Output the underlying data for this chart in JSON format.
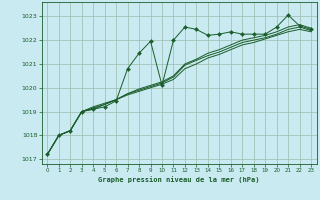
{
  "bg_color": "#c8eaf0",
  "grid_color": "#99bbaa",
  "line_color": "#1a5c2a",
  "xlabel": "Graphe pression niveau de la mer (hPa)",
  "xlim": [
    -0.5,
    23.5
  ],
  "ylim": [
    1016.8,
    1023.6
  ],
  "yticks": [
    1017,
    1018,
    1019,
    1020,
    1021,
    1022,
    1023
  ],
  "xticks": [
    0,
    1,
    2,
    3,
    4,
    5,
    6,
    7,
    8,
    9,
    10,
    11,
    12,
    13,
    14,
    15,
    16,
    17,
    18,
    19,
    20,
    21,
    22,
    23
  ],
  "series": {
    "line1": [
      1017.2,
      1018.0,
      1018.2,
      1019.0,
      1019.1,
      1019.2,
      1019.45,
      1020.8,
      1021.45,
      1021.95,
      1020.1,
      1022.0,
      1022.55,
      1022.45,
      1022.2,
      1022.25,
      1022.35,
      1022.25,
      1022.25,
      1022.25,
      1022.55,
      1023.05,
      1022.6,
      1022.45
    ],
    "line2": [
      1017.2,
      1018.0,
      1018.2,
      1019.0,
      1019.1,
      1019.3,
      1019.5,
      1019.75,
      1019.95,
      1020.1,
      1020.25,
      1020.5,
      1021.0,
      1021.2,
      1021.45,
      1021.6,
      1021.8,
      1022.0,
      1022.1,
      1022.2,
      1022.35,
      1022.55,
      1022.65,
      1022.5
    ],
    "line3": [
      1017.2,
      1018.0,
      1018.2,
      1019.0,
      1019.15,
      1019.3,
      1019.5,
      1019.75,
      1019.9,
      1020.05,
      1020.2,
      1020.45,
      1020.95,
      1021.15,
      1021.35,
      1021.5,
      1021.7,
      1021.9,
      1022.0,
      1022.1,
      1022.25,
      1022.45,
      1022.55,
      1022.4
    ],
    "line4": [
      1017.2,
      1018.0,
      1018.2,
      1019.0,
      1019.2,
      1019.35,
      1019.5,
      1019.7,
      1019.85,
      1020.0,
      1020.15,
      1020.35,
      1020.8,
      1021.0,
      1021.25,
      1021.4,
      1021.6,
      1021.8,
      1021.9,
      1022.05,
      1022.2,
      1022.35,
      1022.45,
      1022.35
    ]
  }
}
